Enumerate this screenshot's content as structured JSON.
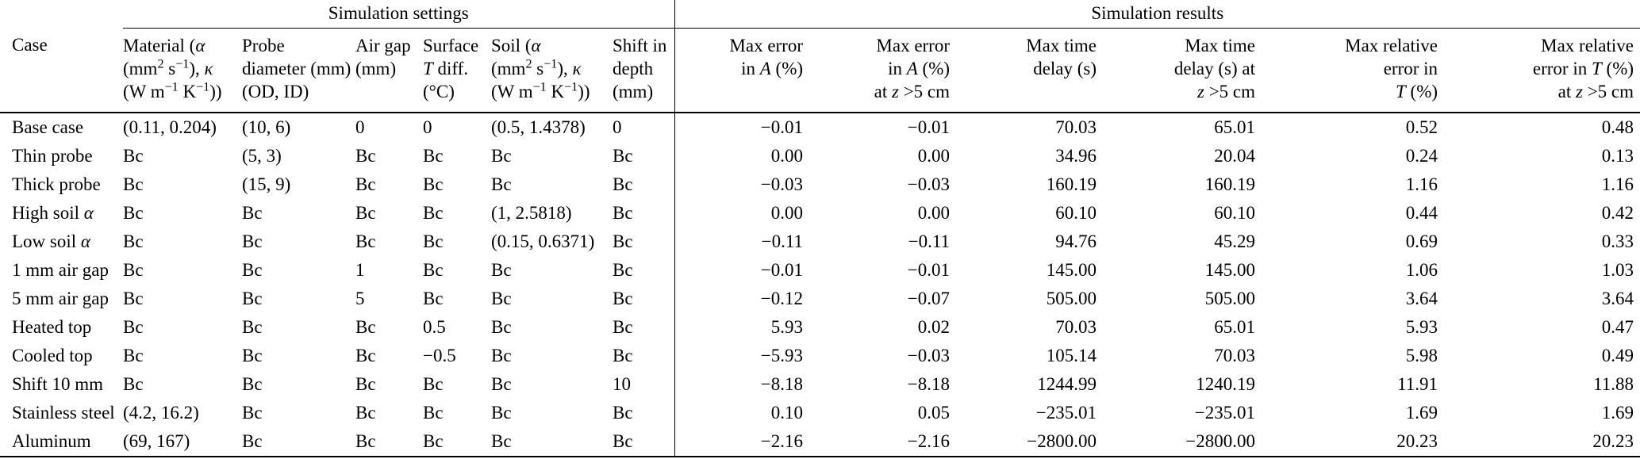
{
  "table": {
    "group_headers": {
      "settings": "Simulation settings",
      "results": "Simulation results"
    },
    "columns": [
      {
        "name": "case",
        "label_html": "Case"
      },
      {
        "name": "material",
        "label_html": "Material (<i>α</i><br>(mm<sup>2</sup> s<sup>−1</sup>), <i>κ</i><br>(W m<sup>−1</sup> K<sup>−1</sup>))"
      },
      {
        "name": "probe-diameter",
        "label_html": "Probe<br>diameter (mm)<br>(OD, ID)"
      },
      {
        "name": "air-gap",
        "label_html": "Air gap<br>(mm)"
      },
      {
        "name": "surface-t-diff",
        "label_html": "Surface<br><i>T</i> diff.<br>(°C)"
      },
      {
        "name": "soil",
        "label_html": "Soil (<i>α</i><br>(mm<sup>2</sup> s<sup>−1</sup>), <i>κ</i><br>(W m<sup>−1</sup> K<sup>−1</sup>))"
      },
      {
        "name": "shift-in-depth",
        "label_html": "Shift in<br>depth<br>(mm)"
      },
      {
        "name": "max-error-a",
        "label_html": "Max error<br>in <i>A</i> (%)"
      },
      {
        "name": "max-error-a-z5",
        "label_html": "Max error<br>in <i>A</i> (%)<br>at <i>z</i> >5 cm"
      },
      {
        "name": "max-time-delay",
        "label_html": "Max time<br>delay (s)"
      },
      {
        "name": "max-time-delay-z5",
        "label_html": "Max time<br>delay (s) at<br><i>z</i> >5 cm"
      },
      {
        "name": "max-rel-error-t",
        "label_html": "Max relative<br>error in<br><i>T</i> (%)"
      },
      {
        "name": "max-rel-error-t-z5",
        "label_html": "Max relative<br>error in <i>T</i> (%)<br>at <i>z</i> >5 cm"
      }
    ],
    "rows": [
      [
        "Base case",
        "(0.11, 0.204)",
        "(10, 6)",
        "0",
        "0",
        "(0.5, 1.4378)",
        "0",
        "−0.01",
        "−0.01",
        "70.03",
        "65.01",
        "0.52",
        "0.48"
      ],
      [
        "Thin probe",
        "Bc",
        "(5, 3)",
        "Bc",
        "Bc",
        "Bc",
        "Bc",
        "0.00",
        "0.00",
        "34.96",
        "20.04",
        "0.24",
        "0.13"
      ],
      [
        "Thick probe",
        "Bc",
        "(15, 9)",
        "Bc",
        "Bc",
        "Bc",
        "Bc",
        "−0.03",
        "−0.03",
        "160.19",
        "160.19",
        "1.16",
        "1.16"
      ],
      [
        "High soil <i>α</i>",
        "Bc",
        "Bc",
        "Bc",
        "Bc",
        "(1, 2.5818)",
        "Bc",
        "0.00",
        "0.00",
        "60.10",
        "60.10",
        "0.44",
        "0.42"
      ],
      [
        "Low soil <i>α</i>",
        "Bc",
        "Bc",
        "Bc",
        "Bc",
        "(0.15, 0.6371)",
        "Bc",
        "−0.11",
        "−0.11",
        "94.76",
        "45.29",
        "0.69",
        "0.33"
      ],
      [
        "1 mm air gap",
        "Bc",
        "Bc",
        "1",
        "Bc",
        "Bc",
        "Bc",
        "−0.01",
        "−0.01",
        "145.00",
        "145.00",
        "1.06",
        "1.03"
      ],
      [
        "5 mm air gap",
        "Bc",
        "Bc",
        "5",
        "Bc",
        "Bc",
        "Bc",
        "−0.12",
        "−0.07",
        "505.00",
        "505.00",
        "3.64",
        "3.64"
      ],
      [
        "Heated top",
        "Bc",
        "Bc",
        "Bc",
        "0.5",
        "Bc",
        "Bc",
        "5.93",
        "0.02",
        "70.03",
        "65.01",
        "5.93",
        "0.47"
      ],
      [
        "Cooled top",
        "Bc",
        "Bc",
        "Bc",
        "−0.5",
        "Bc",
        "Bc",
        "−5.93",
        "−0.03",
        "105.14",
        "70.03",
        "5.98",
        "0.49"
      ],
      [
        "Shift 10 mm",
        "Bc",
        "Bc",
        "Bc",
        "Bc",
        "Bc",
        "10",
        "−8.18",
        "−8.18",
        "1244.99",
        "1240.19",
        "11.91",
        "11.88"
      ],
      [
        "Stainless steel",
        "(4.2, 16.2)",
        "Bc",
        "Bc",
        "Bc",
        "Bc",
        "Bc",
        "0.10",
        "0.05",
        "−235.01",
        "−235.01",
        "1.69",
        "1.69"
      ],
      [
        "Aluminum",
        "(69, 167)",
        "Bc",
        "Bc",
        "Bc",
        "Bc",
        "Bc",
        "−2.16",
        "−2.16",
        "−2800.00",
        "−2800.00",
        "20.23",
        "20.23"
      ]
    ]
  }
}
